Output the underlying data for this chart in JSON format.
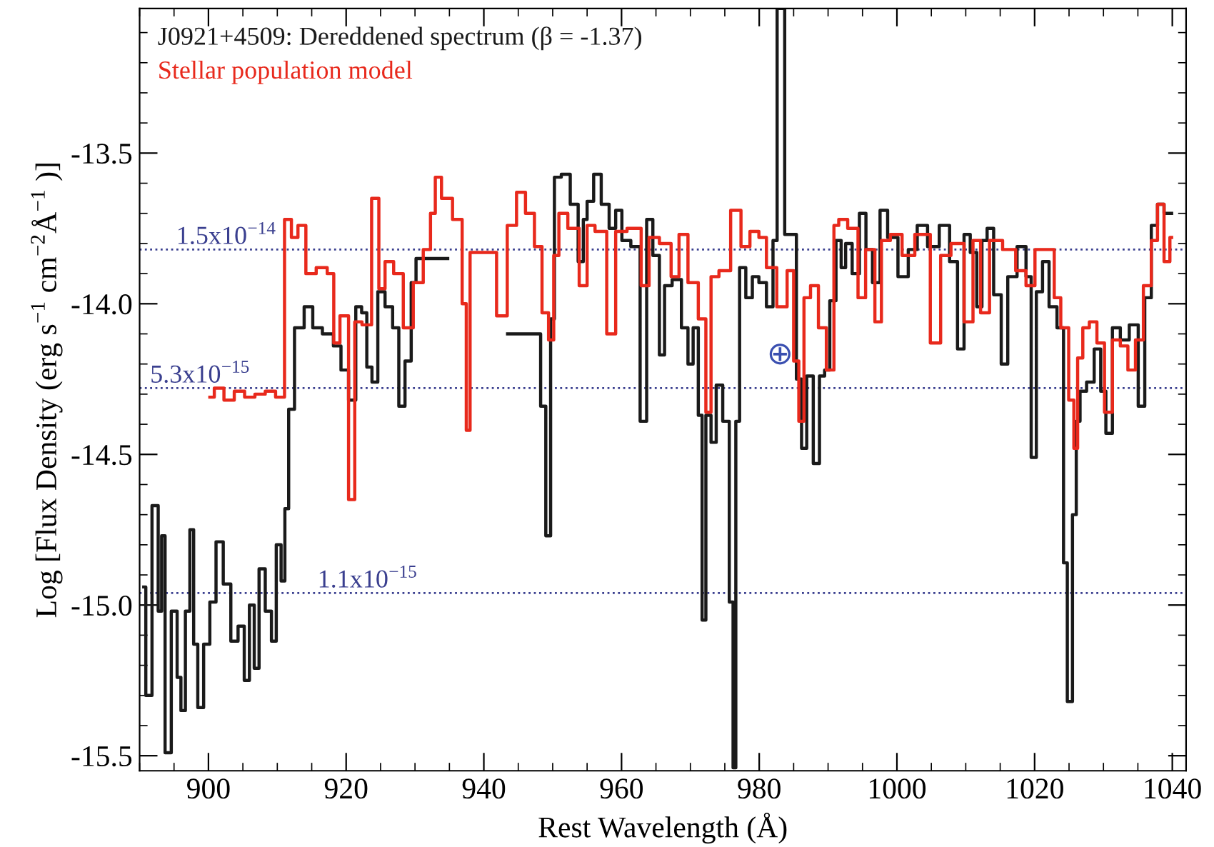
{
  "chart_data": {
    "type": "step",
    "xlabel": "Rest Wavelength (Å)",
    "ylabel": "Log [Flux Density (erg s$^{−1}$ cm$^{−2}$Å$^{−1}$ )]",
    "xlim": [
      890,
      1042
    ],
    "xticks": [
      900,
      920,
      940,
      960,
      980,
      1000,
      1020,
      1040
    ],
    "ylim": [
      -15.55,
      -13.02
    ],
    "yticks": [
      {
        "value": -15.5,
        "label": "-15.5"
      },
      {
        "value": -15.0,
        "label": "-15.0"
      },
      {
        "value": -14.5,
        "label": "-14.5"
      },
      {
        "value": -14.0,
        "label": "-14.0"
      },
      {
        "value": -13.5,
        "label": "-13.5"
      }
    ],
    "grid": false,
    "legend": "top left",
    "series": [
      {
        "name": "J0921+4509: Dereddened spectrum (β = -1.37)",
        "color": "#1a1a1a",
        "x": [
          890.6,
          891.2,
          892.4,
          893.0,
          893.4,
          894.0,
          895.2,
          895.7,
          896.3,
          897.0,
          897.6,
          898.1,
          898.8,
          899.8,
          900.6,
          901.6,
          902.7,
          903.8,
          904.8,
          905.6,
          906.3,
          907.0,
          907.7,
          908.8,
          909.5,
          910.2,
          910.9,
          911.3,
          912.0,
          913.0,
          914.8,
          915.5,
          917.6,
          918.7,
          919.8,
          920.9,
          921.9,
          922.6,
          923.4,
          924.1,
          925.1,
          926.2,
          927.3,
          928.0,
          929.1,
          929.8,
          930.5,
          939.0,
          947.9,
          948.6,
          949.4,
          950.0,
          950.5,
          952.0,
          953.1,
          954.3,
          954.6,
          955.4,
          956.5,
          957.6,
          958.8,
          959.5,
          960.6,
          962.1,
          963.3,
          964.0,
          965.1,
          965.9,
          966.6,
          968.1,
          969.3,
          970.0,
          970.8,
          971.5,
          971.9,
          972.6,
          973.4,
          974.1,
          975.3,
          976.0,
          976.4,
          976.8,
          977.5,
          978.6,
          979.4,
          980.5,
          981.6,
          982.4,
          982.8,
          984.6,
          985.0,
          985.8,
          986.5,
          987.3,
          988.4,
          989.1,
          989.9,
          990.6,
          991.7,
          992.1,
          993.0,
          994.0,
          995.1,
          995.9,
          997.0,
          998.1,
          999.2,
          1001.1,
          1002.2,
          1003.7,
          1005.2,
          1007.1,
          1008.2,
          1009.4,
          1010.1,
          1011.2,
          1012.0,
          1012.7,
          1013.5,
          1014.6,
          1015.7,
          1016.5,
          1018.4,
          1019.1,
          1019.9,
          1020.6,
          1021.7,
          1022.5,
          1024.0,
          1024.4,
          1025.1,
          1025.9,
          1026.2,
          1027.0,
          1028.1,
          1029.2,
          1030.0,
          1030.7,
          1031.9,
          1033.0,
          1034.5,
          1035.6,
          1036.4,
          1037.5,
          1038.2,
          1039.4,
          1039.9
        ],
        "values": [
          -14.94,
          -15.3,
          -14.67,
          -15.02,
          -14.77,
          -15.49,
          -15.02,
          -15.24,
          -15.35,
          -15.02,
          -14.75,
          -15.13,
          -15.34,
          -15.13,
          -14.99,
          -14.79,
          -14.93,
          -15.12,
          -15.07,
          -15.25,
          -15.0,
          -15.21,
          -14.88,
          -15.02,
          -15.12,
          -14.8,
          -14.92,
          -14.68,
          -14.35,
          -14.08,
          -14.01,
          -14.08,
          -14.1,
          -14.14,
          -14.22,
          -14.32,
          -14.01,
          -14.03,
          -14.21,
          -14.26,
          -13.96,
          -14.01,
          -14.08,
          -14.34,
          -14.19,
          -13.93,
          -13.85,
          null,
          -14.1,
          -14.34,
          -14.77,
          -14.05,
          -13.58,
          -13.57,
          -13.67,
          -13.86,
          -13.72,
          -13.66,
          -13.57,
          -13.67,
          -13.75,
          -13.69,
          -13.79,
          -13.81,
          -14.39,
          -13.72,
          -13.84,
          -14.17,
          -13.94,
          -13.92,
          -14.08,
          -14.2,
          -14.08,
          -14.37,
          -15.05,
          -14.37,
          -14.46,
          -14.27,
          -14.39,
          -14.99,
          -15.54,
          -14.39,
          -13.88,
          -13.98,
          -13.91,
          -13.93,
          -14.01,
          -13.79,
          -13.02,
          -13.77,
          -13.77,
          -14.25,
          -14.48,
          -14.24,
          -14.53,
          -14.24,
          -14.22,
          -13.99,
          -13.79,
          -13.88,
          -13.8,
          -13.9,
          -13.7,
          -13.82,
          -13.93,
          -13.69,
          -13.78,
          -13.91,
          -13.82,
          -13.74,
          -13.81,
          -13.74,
          -13.86,
          -14.15,
          -13.77,
          -13.83,
          -14.01,
          -13.79,
          -13.75,
          -13.97,
          -14.2,
          -13.91,
          -13.81,
          -13.91,
          -14.51,
          -13.96,
          -13.86,
          -14.01,
          -14.08,
          -14.86,
          -15.32,
          -14.7,
          -14.39,
          -14.29,
          -14.26,
          -14.15,
          -14.29,
          -14.43,
          -14.08,
          -14.12,
          -14.07,
          -14.34,
          -13.98,
          -13.74,
          -13.67,
          -13.7,
          -13.7
        ]
      },
      {
        "name": "Stellar population model",
        "color": "#e8291c",
        "x": [
          900.2,
          901.5,
          903.0,
          904.5,
          906.0,
          907.5,
          909.0,
          910.5,
          911.6,
          912.5,
          913.5,
          914.8,
          916.5,
          918.0,
          918.4,
          919.8,
          920.9,
          921.6,
          923.0,
          924.4,
          925.1,
          926.2,
          927.6,
          929.0,
          930.5,
          931.9,
          932.6,
          933.3,
          934.4,
          936.5,
          937.2,
          937.7,
          938.3,
          941.1,
          942.6,
          944.2,
          945.3,
          946.8,
          947.9,
          949.0,
          949.8,
          950.5,
          951.3,
          953.1,
          954.6,
          955.4,
          956.9,
          958.8,
          959.5,
          962.1,
          963.6,
          964.4,
          966.6,
          967.8,
          968.9,
          970.4,
          971.9,
          972.6,
          973.4,
          974.9,
          976.8,
          977.9,
          979.4,
          980.5,
          981.6,
          983.5,
          984.6,
          985.4,
          986.1,
          986.9,
          988.0,
          989.2,
          990.3,
          991.4,
          991.7,
          994.0,
          994.7,
          996.2,
          997.4,
          998.1,
          1000.0,
          1001.5,
          1003.7,
          1006.0,
          1006.7,
          1009.0,
          1010.5,
          1011.6,
          1012.7,
          1014.2,
          1016.5,
          1018.0,
          1019.5,
          1020.6,
          1022.5,
          1023.2,
          1024.4,
          1025.5,
          1025.9,
          1026.6,
          1027.4,
          1028.5,
          1029.6,
          1030.7,
          1031.9,
          1033.0,
          1034.1,
          1035.2,
          1036.4,
          1037.5,
          1038.2,
          1039.4,
          1039.9
        ],
        "values": [
          -14.31,
          -14.28,
          -14.32,
          -14.29,
          -14.31,
          -14.3,
          -14.29,
          -14.31,
          -13.72,
          -13.78,
          -13.74,
          -13.9,
          -13.88,
          -13.9,
          -14.13,
          -14.04,
          -14.65,
          -14.06,
          -14.07,
          -13.65,
          -13.95,
          -13.86,
          -13.9,
          -14.08,
          -13.93,
          -13.82,
          -13.7,
          -13.58,
          -13.65,
          -13.72,
          -14.0,
          -14.42,
          -13.83,
          -13.83,
          -14.04,
          -13.74,
          -13.63,
          -13.7,
          -13.81,
          -14.03,
          -14.12,
          -13.84,
          -13.7,
          -13.75,
          -13.94,
          -13.74,
          -13.76,
          -14.1,
          -13.76,
          -13.75,
          -13.94,
          -13.78,
          -13.8,
          -13.91,
          -13.77,
          -13.93,
          -14.05,
          -14.36,
          -13.91,
          -13.89,
          -13.69,
          -13.81,
          -13.76,
          -13.78,
          -13.88,
          -14.01,
          -13.89,
          -14.19,
          -14.39,
          -13.98,
          -13.94,
          -14.08,
          -14.22,
          -13.74,
          -13.72,
          -13.75,
          -13.98,
          -13.82,
          -14.06,
          -13.79,
          -13.77,
          -13.84,
          -13.77,
          -14.13,
          -13.84,
          -13.8,
          -14.06,
          -13.79,
          -14.03,
          -13.79,
          -13.82,
          -13.89,
          -13.94,
          -13.82,
          -13.82,
          -13.98,
          -14.08,
          -14.32,
          -14.48,
          -14.18,
          -14.08,
          -14.06,
          -14.13,
          -14.36,
          -14.12,
          -14.14,
          -14.22,
          -14.12,
          -13.94,
          -13.79,
          -13.67,
          -13.86,
          -13.78
        ]
      }
    ],
    "ref_lines": [
      {
        "axis": "y",
        "value": -13.82,
        "label": "1.5x10$^{−14}$",
        "color": "#3a3f8f",
        "line_style": "dotted"
      },
      {
        "axis": "y",
        "value": -14.28,
        "label": "5.3x10$^{−15}$",
        "color": "#3a3f8f",
        "line_style": "dotted"
      },
      {
        "axis": "y",
        "value": -14.96,
        "label": "1.1x10$^{−15}$",
        "color": "#3a3f8f",
        "line_style": "dotted"
      }
    ],
    "annotations": [
      "⊕"
    ]
  }
}
